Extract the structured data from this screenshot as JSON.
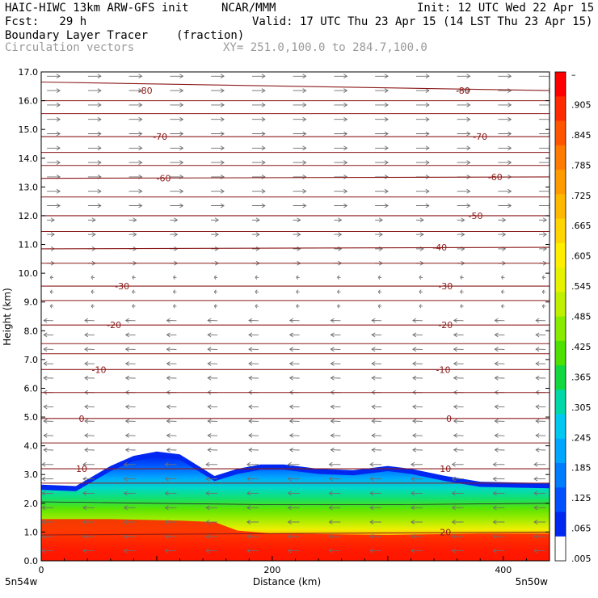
{
  "header": {
    "model": "HAIC-HIWC 13km ARW-GFS init",
    "org": "NCAR/MMM",
    "init": "Init: 12 UTC Wed 22 Apr 15",
    "fcst": "Fcst:   29 h",
    "valid": "Valid: 17 UTC Thu 23 Apr 15 (14 LST Thu 23 Apr 15)",
    "field": "Boundary Layer Tracer",
    "units": "(fraction)",
    "overlay": "Circulation vectors",
    "xy": "XY= 251.0,100.0 to 284.7,100.0"
  },
  "chart_data": {
    "type": "heatmap",
    "title": "Boundary Layer Tracer",
    "units": "(fraction)",
    "xlabel": "Distance (km)",
    "ylabel": "Height (km)",
    "xlim": [
      0,
      440
    ],
    "ylim": [
      0,
      17
    ],
    "x_ticks": [
      "0",
      "200",
      "400"
    ],
    "x_tick_values": [
      0,
      200,
      400
    ],
    "y_ticks": [
      "0.0",
      "1.0",
      "2.0",
      "3.0",
      "4.0",
      "5.0",
      "6.0",
      "7.0",
      "8.0",
      "9.0",
      "10.0",
      "11.0",
      "12.0",
      "13.0",
      "14.0",
      "15.0",
      "16.0",
      "17.0"
    ],
    "x_end_labels": [
      "5n54w",
      "5n50w"
    ],
    "colorbar": {
      "labels": [
        "–",
        ".905",
        ".845",
        ".785",
        ".725",
        ".665",
        ".605",
        ".545",
        ".485",
        ".425",
        ".365",
        ".305",
        ".245",
        ".185",
        ".125",
        ".065",
        ".005"
      ],
      "colors": [
        "#ff0000",
        "#ff2a00",
        "#ff5500",
        "#ff7a00",
        "#ff9a00",
        "#ffb800",
        "#ffd400",
        "#ffee00",
        "#e6f200",
        "#bff000",
        "#88ec00",
        "#4ee000",
        "#12d840",
        "#00d8a8",
        "#00c8f0",
        "#00a6ff",
        "#007cff",
        "#0050ff",
        "#0028f0",
        "#ffffff"
      ]
    },
    "tracer_top_km": {
      "x": [
        0,
        30,
        60,
        80,
        100,
        120,
        150,
        170,
        190,
        210,
        240,
        270,
        300,
        320,
        350,
        380,
        440
      ],
      "y": [
        2.65,
        2.6,
        3.3,
        3.65,
        3.8,
        3.7,
        2.95,
        3.2,
        3.35,
        3.35,
        3.2,
        3.15,
        3.3,
        3.2,
        2.95,
        2.75,
        2.7
      ]
    },
    "temperature_contours_C": [
      {
        "label": "-80",
        "y": [
          16.65,
          16.35
        ]
      },
      {
        "label": "-70",
        "y": [
          14.75,
          14.75
        ]
      },
      {
        "label": "-60",
        "y": [
          13.3,
          13.35
        ]
      },
      {
        "label": "-50",
        "y": [
          12.0,
          12.0
        ]
      },
      {
        "label": "-40",
        "y": [
          10.85,
          10.9
        ]
      },
      {
        "label": "-30",
        "y": [
          9.55,
          9.55
        ]
      },
      {
        "label": "-20",
        "y": [
          8.2,
          8.2
        ]
      },
      {
        "label": "-10",
        "y": [
          6.65,
          6.65
        ]
      },
      {
        "label": "0",
        "y": [
          4.95,
          4.95
        ]
      },
      {
        "label": "10",
        "y": [
          3.2,
          3.2
        ]
      },
      {
        "label": "20",
        "y": [
          0.9,
          1.0
        ]
      }
    ],
    "contour_labels": [
      {
        "text": "-80",
        "x": 90,
        "y": 16.35
      },
      {
        "text": "-80",
        "x": 365,
        "y": 16.35
      },
      {
        "text": "-70",
        "x": 103,
        "y": 14.75
      },
      {
        "text": "-70",
        "x": 380,
        "y": 14.75
      },
      {
        "text": "-60",
        "x": 106,
        "y": 13.3
      },
      {
        "text": "-60",
        "x": 393,
        "y": 13.35
      },
      {
        "text": "-50",
        "x": 376,
        "y": 12.0
      },
      {
        "text": "-40",
        "x": 345,
        "y": 10.9
      },
      {
        "text": "-30",
        "x": 70,
        "y": 9.55
      },
      {
        "text": "-30",
        "x": 350,
        "y": 9.55
      },
      {
        "text": "-20",
        "x": 63,
        "y": 8.2
      },
      {
        "text": "-20",
        "x": 350,
        "y": 8.2
      },
      {
        "text": "-10",
        "x": 50,
        "y": 6.65
      },
      {
        "text": "-10",
        "x": 348,
        "y": 6.65
      },
      {
        "text": "0",
        "x": 35,
        "y": 4.95
      },
      {
        "text": "0",
        "x": 353,
        "y": 4.95
      },
      {
        "text": "10",
        "x": 35,
        "y": 3.2
      },
      {
        "text": "10",
        "x": 350,
        "y": 3.2
      },
      {
        "text": "20",
        "x": 350,
        "y": 1.0
      }
    ]
  },
  "colors": {
    "contour": "#8b1a1a",
    "vector": "#6e6e6e",
    "axes": "#000000"
  }
}
